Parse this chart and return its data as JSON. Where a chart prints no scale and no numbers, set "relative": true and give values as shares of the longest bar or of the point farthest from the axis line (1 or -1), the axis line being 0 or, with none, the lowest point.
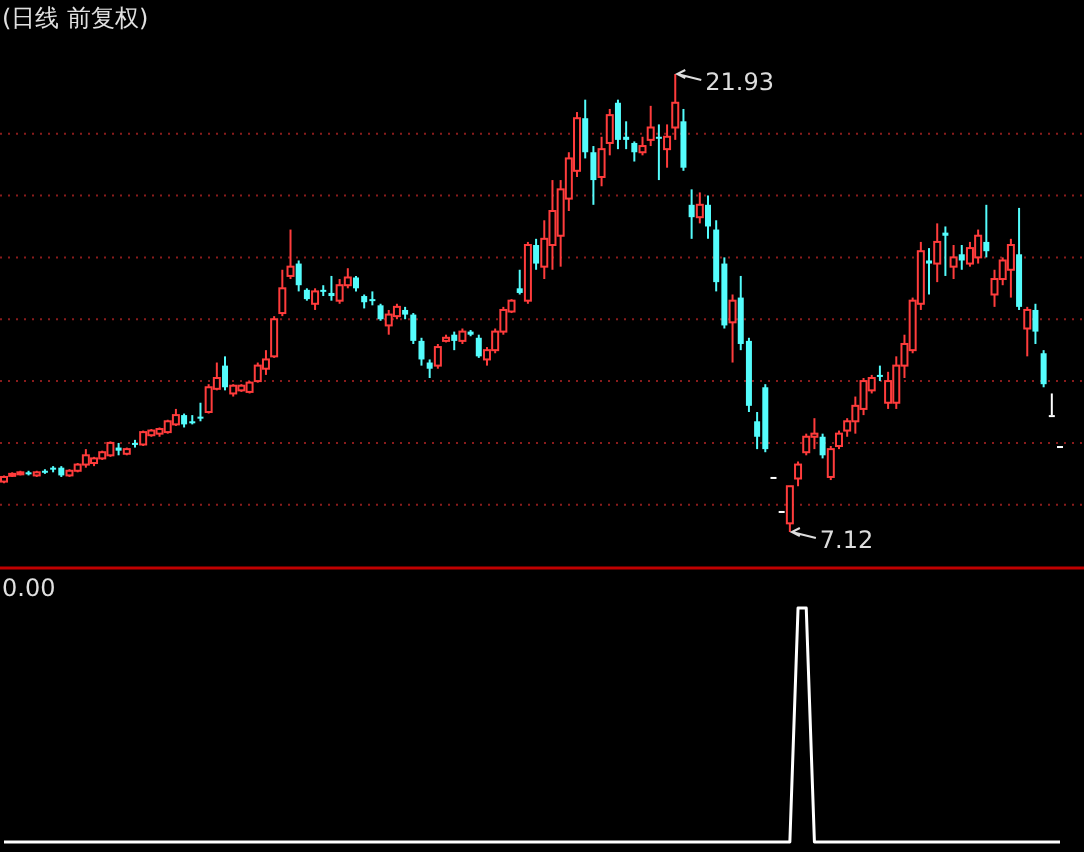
{
  "chart_data": [
    {
      "type": "candlestick",
      "title": "(日线 前复权)",
      "grid": "y",
      "yticks": [
        {
          "value": 8,
          "label": null
        },
        {
          "value": 10,
          "label": null
        },
        {
          "value": 12,
          "label": null
        },
        {
          "value": 14,
          "label": null
        },
        {
          "value": 16,
          "label": null
        },
        {
          "value": 18,
          "label": null
        },
        {
          "value": 20,
          "label": null
        }
      ],
      "annotations": [
        "21.93",
        "7.12"
      ],
      "categories": [
        null,
        null,
        null,
        null,
        null,
        null,
        null,
        null,
        null,
        null,
        null,
        null,
        null,
        null,
        null,
        null,
        null,
        null,
        null,
        null,
        null,
        null,
        null,
        null,
        null,
        null,
        null,
        null,
        null,
        null,
        null,
        null,
        null,
        null,
        null,
        null,
        null,
        null,
        null,
        null,
        null,
        null,
        null,
        null,
        null,
        null,
        null,
        null,
        null,
        null,
        null,
        null,
        null,
        null,
        null,
        null,
        null,
        null,
        null,
        null,
        null,
        null,
        null,
        null,
        null,
        null,
        null,
        null,
        null,
        null,
        null,
        null,
        null,
        null,
        null,
        null,
        null,
        null,
        null,
        null,
        null,
        null,
        null,
        null,
        null,
        null,
        null,
        null,
        null,
        null,
        null,
        null,
        null,
        null,
        null,
        null,
        null,
        null,
        null,
        null,
        null,
        null,
        null,
        null,
        null,
        null,
        null,
        null,
        null,
        null,
        null,
        null,
        null,
        null,
        null,
        null,
        null,
        null,
        null,
        null,
        null,
        null,
        null,
        null,
        null,
        null,
        null,
        null,
        null,
        null
      ],
      "ohlc": [
        [
          8.75,
          8.95,
          8.7,
          8.9
        ],
        [
          8.95,
          9.05,
          8.9,
          9.0
        ],
        [
          9.0,
          9.1,
          8.95,
          9.05
        ],
        [
          9.05,
          9.1,
          8.95,
          9.0
        ],
        [
          8.95,
          9.1,
          8.9,
          9.05
        ],
        [
          9.1,
          9.15,
          9.0,
          9.05
        ],
        [
          9.2,
          9.25,
          9.05,
          9.15
        ],
        [
          9.2,
          9.25,
          8.9,
          8.95
        ],
        [
          8.95,
          9.15,
          8.9,
          9.1
        ],
        [
          9.1,
          9.35,
          9.05,
          9.3
        ],
        [
          9.3,
          9.8,
          9.2,
          9.6
        ],
        [
          9.35,
          9.55,
          9.25,
          9.5
        ],
        [
          9.5,
          9.75,
          9.45,
          9.7
        ],
        [
          9.6,
          10.05,
          9.55,
          10.0
        ],
        [
          9.85,
          10.0,
          9.6,
          9.75
        ],
        [
          9.65,
          9.85,
          9.6,
          9.8
        ],
        [
          10.0,
          10.1,
          9.85,
          9.95
        ],
        [
          9.95,
          10.4,
          9.9,
          10.35
        ],
        [
          10.25,
          10.45,
          10.2,
          10.4
        ],
        [
          10.3,
          10.5,
          10.2,
          10.45
        ],
        [
          10.35,
          10.75,
          10.3,
          10.7
        ],
        [
          10.6,
          11.1,
          10.55,
          10.9
        ],
        [
          10.9,
          10.95,
          10.5,
          10.6
        ],
        [
          10.7,
          10.9,
          10.6,
          10.65
        ],
        [
          10.85,
          11.3,
          10.7,
          10.8
        ],
        [
          11.0,
          11.9,
          10.95,
          11.8
        ],
        [
          11.75,
          12.6,
          11.7,
          12.1
        ],
        [
          12.5,
          12.8,
          11.7,
          11.8
        ],
        [
          11.6,
          11.9,
          11.5,
          11.85
        ],
        [
          11.7,
          11.9,
          11.65,
          11.85
        ],
        [
          11.65,
          12.0,
          11.6,
          11.95
        ],
        [
          12.0,
          12.6,
          11.95,
          12.5
        ],
        [
          12.4,
          13.0,
          12.2,
          12.7
        ],
        [
          12.8,
          14.1,
          12.75,
          14.0
        ],
        [
          14.2,
          15.6,
          14.1,
          15.0
        ],
        [
          15.4,
          16.9,
          15.3,
          15.7
        ],
        [
          15.8,
          15.9,
          14.9,
          15.1
        ],
        [
          14.95,
          15.0,
          14.6,
          14.65
        ],
        [
          14.5,
          15.0,
          14.3,
          14.9
        ],
        [
          14.95,
          15.1,
          14.75,
          14.9
        ],
        [
          14.85,
          15.4,
          14.6,
          14.75
        ],
        [
          14.6,
          15.3,
          14.5,
          15.1
        ],
        [
          15.1,
          15.65,
          15.0,
          15.35
        ],
        [
          15.35,
          15.4,
          14.9,
          15.0
        ],
        [
          14.75,
          14.8,
          14.35,
          14.55
        ],
        [
          14.65,
          14.9,
          14.45,
          14.6
        ],
        [
          14.45,
          14.5,
          13.95,
          14.0
        ],
        [
          13.8,
          14.3,
          13.5,
          14.15
        ],
        [
          14.1,
          14.5,
          14.0,
          14.4
        ],
        [
          14.3,
          14.4,
          14.0,
          14.15
        ],
        [
          14.15,
          14.2,
          13.2,
          13.3
        ],
        [
          13.3,
          13.4,
          12.5,
          12.7
        ],
        [
          12.6,
          12.7,
          12.1,
          12.4
        ],
        [
          12.5,
          13.2,
          12.4,
          13.1
        ],
        [
          13.3,
          13.5,
          13.25,
          13.4
        ],
        [
          13.5,
          13.6,
          13.0,
          13.3
        ],
        [
          13.3,
          13.7,
          13.2,
          13.6
        ],
        [
          13.6,
          13.65,
          13.45,
          13.5
        ],
        [
          13.4,
          13.5,
          12.75,
          12.8
        ],
        [
          12.7,
          13.1,
          12.5,
          13.0
        ],
        [
          13.0,
          13.7,
          12.9,
          13.6
        ],
        [
          13.6,
          14.4,
          13.5,
          14.3
        ],
        [
          14.25,
          14.65,
          14.2,
          14.6
        ],
        [
          15.0,
          15.6,
          14.8,
          14.85
        ],
        [
          14.6,
          16.5,
          14.5,
          16.4
        ],
        [
          16.4,
          16.6,
          15.6,
          15.8
        ],
        [
          15.7,
          17.2,
          15.3,
          16.6
        ],
        [
          16.4,
          18.5,
          15.6,
          17.5
        ],
        [
          16.7,
          18.5,
          15.7,
          18.2
        ],
        [
          17.9,
          19.4,
          17.5,
          19.2
        ],
        [
          18.8,
          20.7,
          18.6,
          20.5
        ],
        [
          20.5,
          21.1,
          19.2,
          19.4
        ],
        [
          19.4,
          19.6,
          17.7,
          18.5
        ],
        [
          18.6,
          19.9,
          18.3,
          19.5
        ],
        [
          19.7,
          20.8,
          19.3,
          20.6
        ],
        [
          21.0,
          21.1,
          19.5,
          19.8
        ],
        [
          19.9,
          20.4,
          19.5,
          19.8
        ],
        [
          19.7,
          19.75,
          19.1,
          19.4
        ],
        [
          19.4,
          19.9,
          19.3,
          19.6
        ],
        [
          19.8,
          20.9,
          19.6,
          20.2
        ],
        [
          19.9,
          20.3,
          18.5,
          19.85
        ],
        [
          19.5,
          20.3,
          18.9,
          19.9
        ],
        [
          20.2,
          21.93,
          19.8,
          21.0
        ],
        [
          20.4,
          20.8,
          18.8,
          18.9
        ],
        [
          17.7,
          18.2,
          16.6,
          17.3
        ],
        [
          17.3,
          18.1,
          17.1,
          17.7
        ],
        [
          17.7,
          18.0,
          16.6,
          17.0
        ],
        [
          16.9,
          17.2,
          14.9,
          15.2
        ],
        [
          15.8,
          16.0,
          13.7,
          13.8
        ],
        [
          13.9,
          14.8,
          12.6,
          14.6
        ],
        [
          14.7,
          15.4,
          13.0,
          13.2
        ],
        [
          13.3,
          13.4,
          11.0,
          11.2
        ],
        [
          10.7,
          11.0,
          9.8,
          10.2
        ],
        [
          11.8,
          11.9,
          9.7,
          9.8
        ],
        [
          8.9,
          8.9,
          8.9,
          8.9
        ],
        [
          7.8,
          7.8,
          7.8,
          7.8
        ],
        [
          7.4,
          8.6,
          7.12,
          8.6
        ],
        [
          8.85,
          9.4,
          8.6,
          9.3
        ],
        [
          9.7,
          10.3,
          9.6,
          10.2
        ],
        [
          10.2,
          10.8,
          9.8,
          10.3
        ],
        [
          10.2,
          10.3,
          9.5,
          9.6
        ],
        [
          8.9,
          9.9,
          8.8,
          9.8
        ],
        [
          9.9,
          10.4,
          9.8,
          10.3
        ],
        [
          10.4,
          10.8,
          10.2,
          10.7
        ],
        [
          10.7,
          11.5,
          10.3,
          11.2
        ],
        [
          11.1,
          12.1,
          10.9,
          12.0
        ],
        [
          11.7,
          12.2,
          11.6,
          12.1
        ],
        [
          12.2,
          12.5,
          12.0,
          12.15
        ],
        [
          11.3,
          12.3,
          11.1,
          12.0
        ],
        [
          11.3,
          12.8,
          11.1,
          12.5
        ],
        [
          12.5,
          13.5,
          12.1,
          13.2
        ],
        [
          13.0,
          14.7,
          12.9,
          14.6
        ],
        [
          14.5,
          16.5,
          14.3,
          16.2
        ],
        [
          15.9,
          16.3,
          14.8,
          15.8
        ],
        [
          15.8,
          17.1,
          15.2,
          16.5
        ],
        [
          16.8,
          17.0,
          15.4,
          16.7
        ],
        [
          15.7,
          16.4,
          15.3,
          16.0
        ],
        [
          16.1,
          16.4,
          15.6,
          15.9
        ],
        [
          15.8,
          16.5,
          15.7,
          16.3
        ],
        [
          16.0,
          16.9,
          15.8,
          16.7
        ],
        [
          16.5,
          17.7,
          16.0,
          16.2
        ],
        [
          14.8,
          15.6,
          14.4,
          15.3
        ],
        [
          15.3,
          16.0,
          15.1,
          15.9
        ],
        [
          15.6,
          16.6,
          14.7,
          16.4
        ],
        [
          16.1,
          17.6,
          14.3,
          14.4
        ],
        [
          13.7,
          14.4,
          12.8,
          14.3
        ],
        [
          14.3,
          14.5,
          13.2,
          13.6
        ],
        [
          12.9,
          13.0,
          11.8,
          11.9
        ],
        [
          10.9,
          11.6,
          10.9,
          10.9
        ],
        [
          9.9,
          9.9,
          9.9,
          9.9
        ]
      ]
    },
    {
      "type": "line",
      "title": "0.00",
      "relative": true,
      "color": "#ffffff",
      "categories": [
        null,
        null,
        null,
        null,
        null,
        null,
        null,
        null,
        null,
        null,
        null,
        null,
        null,
        null,
        null,
        null,
        null,
        null,
        null,
        null,
        null,
        null,
        null,
        null,
        null,
        null,
        null,
        null,
        null,
        null,
        null,
        null,
        null,
        null,
        null,
        null,
        null,
        null,
        null,
        null,
        null,
        null,
        null,
        null,
        null,
        null,
        null,
        null,
        null,
        null,
        null,
        null,
        null,
        null,
        null,
        null,
        null,
        null,
        null,
        null,
        null,
        null,
        null,
        null,
        null,
        null,
        null,
        null,
        null,
        null,
        null,
        null,
        null,
        null,
        null,
        null,
        null,
        null,
        null,
        null,
        null,
        null,
        null,
        null,
        null,
        null,
        null,
        null,
        null,
        null,
        null,
        null,
        null,
        null,
        null,
        null,
        null,
        null,
        null,
        null,
        null,
        null,
        null,
        null,
        null,
        null,
        null,
        null,
        null,
        null,
        null,
        null,
        null,
        null,
        null,
        null,
        null,
        null,
        null,
        null,
        null,
        null,
        null,
        null,
        null,
        null,
        null,
        null,
        null,
        null
      ],
      "values": [
        0,
        0,
        0,
        0,
        0,
        0,
        0,
        0,
        0,
        0,
        0,
        0,
        0,
        0,
        0,
        0,
        0,
        0,
        0,
        0,
        0,
        0,
        0,
        0,
        0,
        0,
        0,
        0,
        0,
        0,
        0,
        0,
        0,
        0,
        0,
        0,
        0,
        0,
        0,
        0,
        0,
        0,
        0,
        0,
        0,
        0,
        0,
        0,
        0,
        0,
        0,
        0,
        0,
        0,
        0,
        0,
        0,
        0,
        0,
        0,
        0,
        0,
        0,
        0,
        0,
        0,
        0,
        0,
        0,
        0,
        0,
        0,
        0,
        0,
        0,
        0,
        0,
        0,
        0,
        0,
        0,
        0,
        0,
        0,
        0,
        0,
        0,
        0,
        0,
        0,
        0,
        0,
        0,
        0,
        0,
        0,
        0,
        1,
        1,
        0,
        0,
        0,
        0,
        0,
        0,
        0,
        0,
        0,
        0,
        0,
        0,
        0,
        0,
        0,
        0,
        0,
        0,
        0,
        0,
        0,
        0,
        0,
        0,
        0,
        0,
        0,
        0,
        0,
        0,
        0
      ]
    }
  ]
}
